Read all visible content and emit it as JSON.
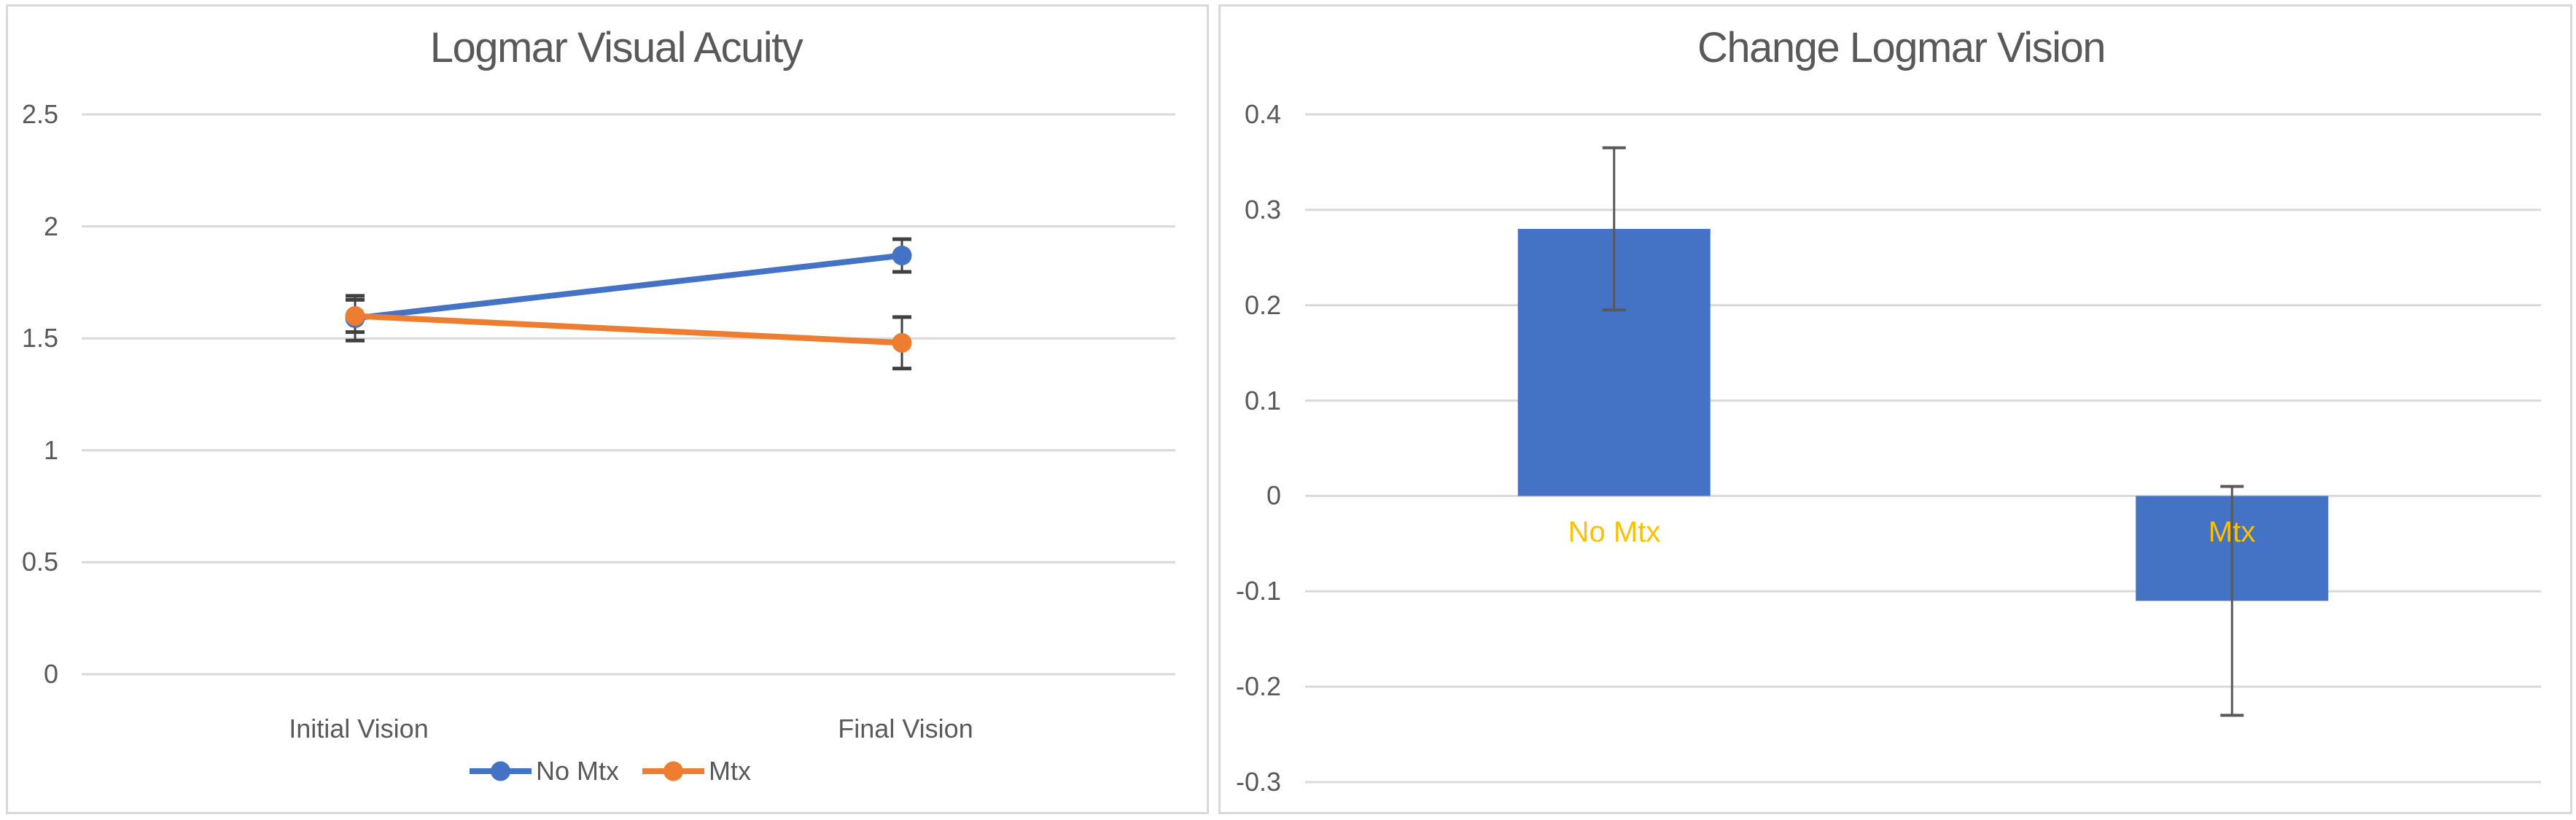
{
  "colors": {
    "blue": "#4472C4",
    "orange": "#ED7D31",
    "gold": "#FFC000",
    "grid": "#D9D9D9",
    "text": "#595959",
    "error_left": "#404040",
    "error_right": "#595959",
    "panel_border": "#D9D9D9",
    "background": "#FFFFFF"
  },
  "chart_data": [
    {
      "type": "line",
      "title": "Logmar Visual Acuity",
      "categories": [
        "Initial Vision",
        "Final Vision"
      ],
      "series": [
        {
          "name": "No Mtx",
          "color_key": "blue",
          "values": [
            1.59,
            1.87
          ],
          "errors": [
            0.1,
            0.073
          ]
        },
        {
          "name": "Mtx",
          "color_key": "orange",
          "values": [
            1.6,
            1.48
          ],
          "errors": [
            0.072,
            0.115
          ]
        }
      ],
      "ylim": [
        0,
        2.5
      ],
      "yticks": [
        "2.5",
        "2",
        "1.5",
        "1",
        "0.5",
        "0"
      ],
      "ytick_values": [
        2.5,
        2,
        1.5,
        1,
        0.5,
        0
      ],
      "grid": true,
      "legend_position": "bottom"
    },
    {
      "type": "bar",
      "title": "Change Logmar Vision",
      "categories": [
        "No Mtx",
        "Mtx"
      ],
      "values": [
        0.28,
        -0.11
      ],
      "errors": [
        0.085,
        0.12
      ],
      "bar_color_key": "blue",
      "category_label_color_key": "gold",
      "ylim": [
        -0.3,
        0.4
      ],
      "yticks": [
        "0.4",
        "0.3",
        "0.2",
        "0.1",
        "0",
        "-0.1",
        "-0.2",
        "-0.3"
      ],
      "ytick_values": [
        0.4,
        0.3,
        0.2,
        0.1,
        0,
        -0.1,
        -0.2,
        -0.3
      ],
      "grid": true,
      "legend_position": "none"
    }
  ]
}
